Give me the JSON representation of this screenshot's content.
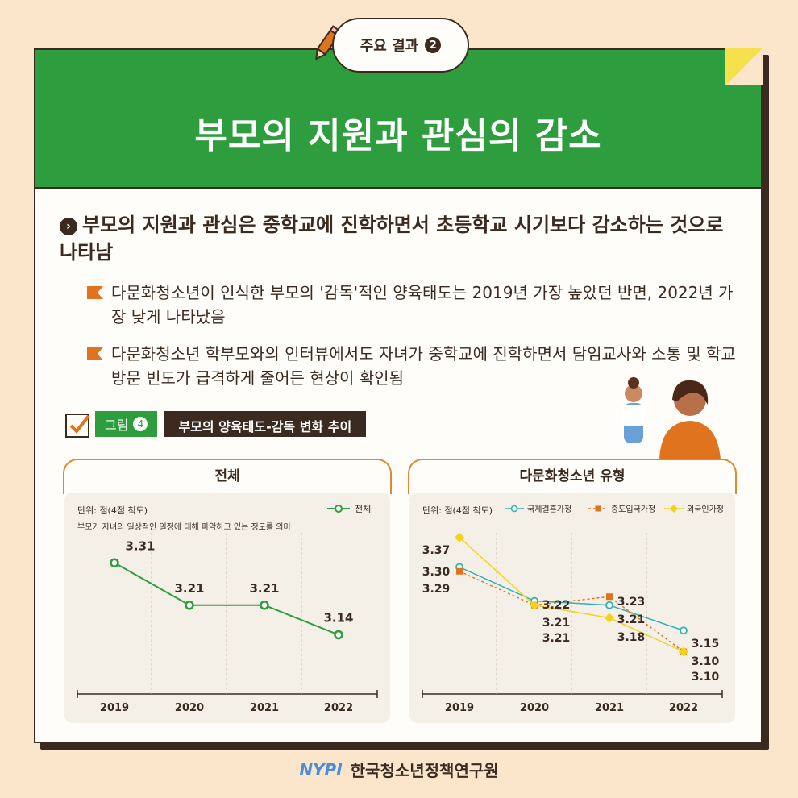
{
  "badge": {
    "label": "주요 결과",
    "number": "2"
  },
  "title": "부모의 지원과 관심의 감소",
  "headline": "부모의 지원과 관심은 중학교에 진학하면서 초등학교 시기보다 감소하는 것으로 나타남",
  "bullets": [
    "다문화청소년이 인식한 부모의 '감독'적인 양육태도는 2019년 가장 높았던 반면, 2022년 가장 낮게 나타났음",
    "다문화청소년 학부모와의 인터뷰에서도 자녀가 중학교에 진학하면서 담임교사와 소통 및 학교 방문 빈도가 급격하게 줄어든 현상이 확인됨"
  ],
  "figure": {
    "label": "그림",
    "number": "4",
    "title": "부모의 양육태도-감독 변화 추이"
  },
  "footer": {
    "logo": "NYPI",
    "org": "한국청소년정책연구원"
  },
  "colors": {
    "green": "#2e9d3d",
    "teal": "#2fb3b0",
    "orange": "#e0741e",
    "yellow": "#f5d21a"
  },
  "chart_data": [
    {
      "type": "line",
      "title": "전체",
      "unit_note": "단위: 점(4점 척도)",
      "note": "부모가 자녀의 일상적인 일정에 대해 파악하고 있는 정도를 의미",
      "categories": [
        "2019",
        "2020",
        "2021",
        "2022"
      ],
      "ylim": [
        3.0,
        3.4
      ],
      "series": [
        {
          "name": "전체",
          "values": [
            3.31,
            3.21,
            3.21,
            3.14
          ],
          "labels": [
            "3.31",
            "3.21",
            "3.21",
            "3.14"
          ]
        }
      ]
    },
    {
      "type": "line",
      "title": "다문화청소년 유형",
      "unit_note": "단위: 점(4점 척도)",
      "categories": [
        "2019",
        "2020",
        "2021",
        "2022"
      ],
      "ylim": [
        3.0,
        3.4
      ],
      "series": [
        {
          "name": "국제결혼가정",
          "values": [
            3.3,
            3.22,
            3.21,
            3.15
          ],
          "labels": [
            "3.30",
            "3.22",
            "3.21",
            "3.15"
          ]
        },
        {
          "name": "중도입국가정",
          "values": [
            3.29,
            3.21,
            3.23,
            3.1
          ],
          "labels": [
            "3.29",
            "3.21",
            "3.23",
            "3.10"
          ]
        },
        {
          "name": "외국인가정",
          "values": [
            3.37,
            3.21,
            3.18,
            3.1
          ],
          "labels": [
            "3.37",
            "3.21",
            "3.18",
            "3.10"
          ]
        }
      ]
    }
  ]
}
